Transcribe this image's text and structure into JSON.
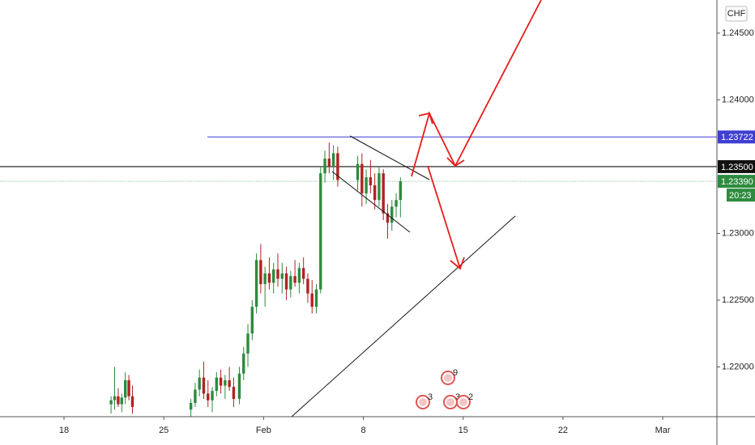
{
  "chart_data": {
    "type": "candlestick",
    "currency": "CHF",
    "countdown": "20:23",
    "up_color": "#2e8b3e",
    "down_color": "#b22222",
    "xlim": [
      13.51,
      63.8
    ],
    "ylim": [
      1.21627,
      1.24748
    ],
    "xticks": [
      18,
      25,
      {
        "value": 32,
        "label": "Feb"
      },
      {
        "value": 39,
        "label": "8"
      },
      {
        "value": 46,
        "label": "15"
      },
      {
        "value": 53,
        "label": "22"
      },
      {
        "value": 60,
        "label": "Mar"
      }
    ],
    "yticks": [
      {
        "value": 1.245,
        "label": "1.24500"
      },
      {
        "value": 1.24,
        "label": "1.24000"
      },
      {
        "value": 1.23,
        "label": "1.23000"
      },
      {
        "value": 1.225,
        "label": "1.22500"
      },
      {
        "value": 1.22,
        "label": "1.22000"
      }
    ],
    "price_lines": [
      {
        "value": 1.23722,
        "label": "1.23722",
        "color": "#3f3fd1"
      },
      {
        "value": 1.235,
        "label": "1.23500",
        "color": "#111111"
      },
      {
        "value": 1.2339,
        "label": "1.23390",
        "color": "#2e8b3e"
      }
    ],
    "events": [
      "9",
      "3",
      "3",
      "2"
    ],
    "x": [
      21.3,
      21.55,
      21.8,
      22.05,
      22.3,
      22.55,
      22.8,
      26.9,
      27.2,
      27.5,
      27.8,
      28.1,
      28.4,
      28.7,
      29.0,
      29.3,
      29.6,
      29.9,
      30.3,
      30.6,
      30.9,
      31.2,
      31.5,
      31.8,
      32.1,
      32.4,
      32.7,
      33.0,
      33.3,
      33.6,
      33.9,
      34.2,
      34.5,
      34.8,
      35.1,
      35.4,
      35.7,
      36.0,
      36.3,
      36.6,
      36.9,
      37.2,
      38.6,
      38.9,
      39.2,
      39.5,
      39.8,
      40.1,
      40.4,
      40.7,
      41.0,
      41.3,
      41.6
    ],
    "open": [
      1.2172,
      1.2175,
      1.2178,
      1.2172,
      1.2177,
      1.219,
      1.2178,
      1.2168,
      1.2173,
      1.2183,
      1.2192,
      1.218,
      1.2175,
      1.2182,
      1.2192,
      1.2186,
      1.219,
      1.2185,
      1.2176,
      1.2195,
      1.221,
      1.2225,
      1.2245,
      1.228,
      1.2262,
      1.227,
      1.2263,
      1.2273,
      1.2266,
      1.227,
      1.2258,
      1.2268,
      1.2263,
      1.2274,
      1.2266,
      1.2255,
      1.2245,
      1.2258,
      1.2345,
      1.2356,
      1.235,
      1.236,
      1.234,
      1.2352,
      1.233,
      1.2342,
      1.2336,
      1.2325,
      1.2345,
      1.2315,
      1.2308,
      1.232,
      1.2325
    ],
    "high": [
      1.2178,
      1.22,
      1.2184,
      1.218,
      1.2196,
      1.2194,
      1.2186,
      1.2176,
      1.2188,
      1.2198,
      1.2204,
      1.219,
      1.2185,
      1.2196,
      1.2198,
      1.2194,
      1.22,
      1.2192,
      1.22,
      1.2215,
      1.2232,
      1.225,
      1.2285,
      1.2292,
      1.2275,
      1.2282,
      1.2278,
      1.2285,
      1.2278,
      1.2275,
      1.2272,
      1.228,
      1.2278,
      1.2282,
      1.227,
      1.2265,
      1.2262,
      1.235,
      1.2362,
      1.2368,
      1.2366,
      1.2365,
      1.2358,
      1.236,
      1.2348,
      1.2355,
      1.2345,
      1.235,
      1.2348,
      1.2322,
      1.2325,
      1.233,
      1.2342
    ],
    "low": [
      1.2165,
      1.2168,
      1.217,
      1.2166,
      1.2172,
      1.2175,
      1.2165,
      1.2162,
      1.217,
      1.2178,
      1.2176,
      1.217,
      1.2166,
      1.2178,
      1.218,
      1.2176,
      1.2182,
      1.217,
      1.2172,
      1.219,
      1.22,
      1.222,
      1.224,
      1.2255,
      1.2245,
      1.2258,
      1.2255,
      1.226,
      1.2255,
      1.225,
      1.2252,
      1.226,
      1.2255,
      1.2262,
      1.2248,
      1.224,
      1.224,
      1.2255,
      1.2338,
      1.2345,
      1.234,
      1.2335,
      1.2332,
      1.232,
      1.2322,
      1.233,
      1.2318,
      1.232,
      1.231,
      1.2296,
      1.2302,
      1.2312,
      1.2312
    ],
    "close": [
      1.2175,
      1.2178,
      1.2172,
      1.2177,
      1.219,
      1.2178,
      1.217,
      1.2173,
      1.2183,
      1.2192,
      1.218,
      1.2175,
      1.2182,
      1.2192,
      1.2186,
      1.219,
      1.2185,
      1.2176,
      1.2195,
      1.221,
      1.2225,
      1.2245,
      1.228,
      1.2262,
      1.227,
      1.2263,
      1.2273,
      1.2266,
      1.227,
      1.2258,
      1.2268,
      1.2263,
      1.2274,
      1.2266,
      1.2255,
      1.2245,
      1.2258,
      1.2345,
      1.2356,
      1.235,
      1.236,
      1.234,
      1.2352,
      1.233,
      1.2342,
      1.2336,
      1.2325,
      1.2345,
      1.2315,
      1.2308,
      1.232,
      1.2325,
      1.2339
    ]
  }
}
